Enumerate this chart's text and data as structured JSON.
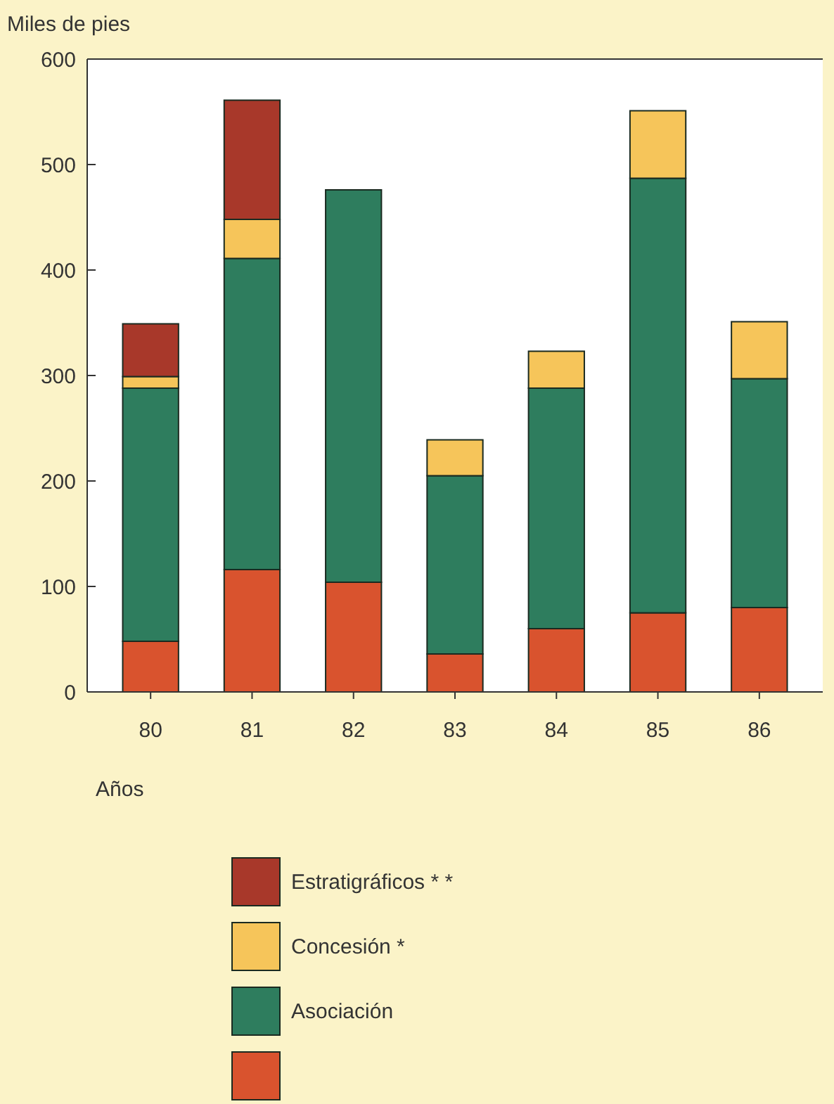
{
  "chart_data": {
    "type": "bar",
    "stacked": true,
    "ylabel": "Miles de pies",
    "xlabel": "Años",
    "categories": [
      "80",
      "81",
      "82",
      "83",
      "84",
      "85",
      "86"
    ],
    "series": [
      {
        "color": "#d9532e",
        "values": [
          48,
          116,
          104,
          36,
          60,
          75,
          80
        ]
      },
      {
        "name": "Asociación",
        "color": "#2e7d5e",
        "values": [
          240,
          295,
          372,
          169,
          228,
          412,
          217
        ]
      },
      {
        "name": "Concesión *",
        "color": "#f6c55a",
        "values": [
          11,
          37,
          null,
          34,
          35,
          64,
          54
        ]
      },
      {
        "name": "Estratigráficos * *",
        "color": "#a8382a",
        "values": [
          50,
          113,
          null,
          null,
          null,
          null,
          null
        ]
      }
    ],
    "ylim": [
      0,
      600
    ],
    "yticks": [
      0,
      100,
      200,
      300,
      400,
      500,
      600
    ],
    "grid": false,
    "legend": "bottom"
  }
}
